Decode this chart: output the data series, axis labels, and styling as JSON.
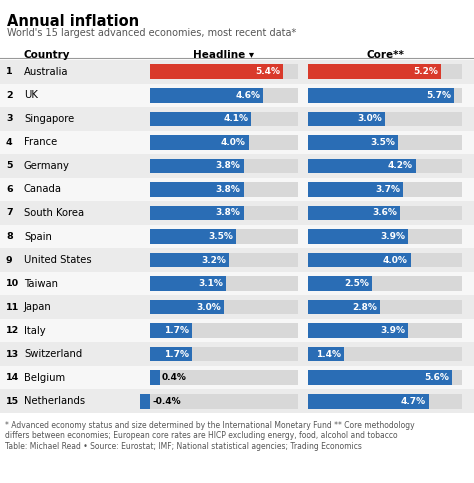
{
  "title": "Annual inflation",
  "subtitle": "World's 15 largest advanced economies, most recent data*",
  "col_headline": "Headline ▾",
  "col_core": "Core**",
  "col_country": "Country",
  "countries": [
    "Australia",
    "UK",
    "Singapore",
    "France",
    "Germany",
    "Canada",
    "South Korea",
    "Spain",
    "United States",
    "Taiwan",
    "Japan",
    "Italy",
    "Switzerland",
    "Belgium",
    "Netherlands"
  ],
  "ranks": [
    "1",
    "2",
    "3",
    "4",
    "5",
    "6",
    "7",
    "8",
    "9",
    "10",
    "11",
    "12",
    "13",
    "14",
    "15"
  ],
  "headline": [
    5.4,
    4.6,
    4.1,
    4.0,
    3.8,
    3.8,
    3.8,
    3.5,
    3.2,
    3.1,
    3.0,
    1.7,
    1.7,
    0.4,
    -0.4
  ],
  "core": [
    5.2,
    5.7,
    3.0,
    3.5,
    4.2,
    3.7,
    3.6,
    3.9,
    4.0,
    2.5,
    2.8,
    3.9,
    1.4,
    5.6,
    4.7
  ],
  "headline_color_highlight": "#d93a2b",
  "headline_color_normal": "#2a6db5",
  "core_color_highlight": "#d93a2b",
  "core_color_normal": "#2a6db5",
  "bar_bg_color": "#d8d8d8",
  "row_bg_alt": "#ebebeb",
  "row_bg_norm": "#f7f7f7",
  "footnote1": "* Advanced economy status and size determined by the International Monetary Fund ** Core methodology",
  "footnote2": "differs between economies; European core rates are HICP excluding energy, food, alcohol and tobacco",
  "footnote3": "Table: Michael Read • Source: Eurostat; IMF; National statistical agencies; Trading Economics",
  "max_val": 6.0,
  "highlight_row": 0,
  "fig_w": 4.74,
  "fig_h": 4.83,
  "dpi": 100
}
